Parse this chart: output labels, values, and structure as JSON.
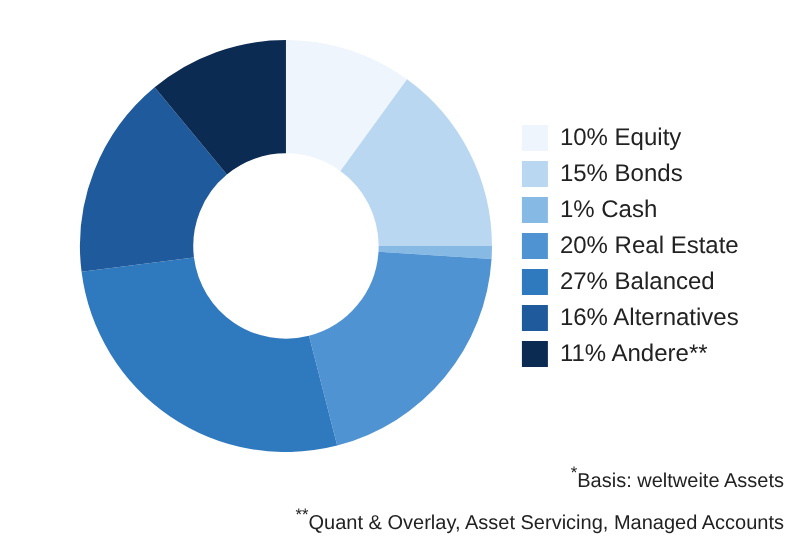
{
  "chart_data": {
    "type": "donut",
    "categories": [
      "10% Equity",
      "15% Bonds",
      "1% Cash",
      "20% Real Estate",
      "27% Balanced",
      "16% Alternatives",
      "11% Andere**"
    ],
    "values": [
      10,
      15,
      1,
      20,
      27,
      16,
      11
    ],
    "colors": [
      "#eef5fc",
      "#b9d7f0",
      "#86b9e3",
      "#4f93d2",
      "#2f79bf",
      "#1f5a9c",
      "#0c2b52"
    ],
    "legend": "right",
    "annotations": [
      "$^{*}$Basis: weltweite Assets",
      "$^{**}$Quant & Overlay, Asset Servicing, Managed Accounts"
    ]
  }
}
